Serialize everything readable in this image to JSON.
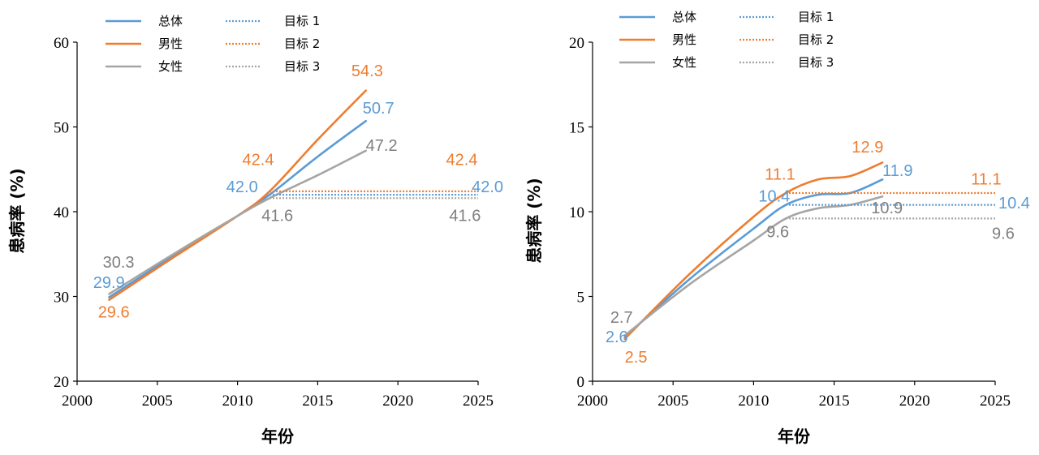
{
  "chart_data": [
    {
      "type": "line",
      "xlabel": "年份",
      "ylabel": "患病率 (%)",
      "xlim": [
        2000,
        2025
      ],
      "ylim": [
        20,
        60
      ],
      "xticks": [
        "2000",
        "2005",
        "2010",
        "2015",
        "2020",
        "2025"
      ],
      "yticks": [
        "20",
        "30",
        "40",
        "50",
        "60"
      ],
      "legend_placement": "top",
      "series": [
        {
          "name": "总体",
          "color": "#5b9bd5",
          "style": "solid",
          "points": [
            [
              2002,
              29.9
            ],
            [
              2006,
              34.8
            ],
            [
              2010,
              39.5
            ],
            [
              2012,
              42.0
            ],
            [
              2015,
              46.5
            ],
            [
              2018,
              50.7
            ]
          ]
        },
        {
          "name": "男性",
          "color": "#ed7d31",
          "style": "solid",
          "points": [
            [
              2002,
              29.6
            ],
            [
              2006,
              34.6
            ],
            [
              2010,
              39.5
            ],
            [
              2012,
              42.4
            ],
            [
              2015,
              48.5
            ],
            [
              2018,
              54.3
            ]
          ]
        },
        {
          "name": "女性",
          "color": "#a5a5a5",
          "style": "solid",
          "points": [
            [
              2002,
              30.3
            ],
            [
              2006,
              35.0
            ],
            [
              2010,
              39.5
            ],
            [
              2012,
              41.6
            ],
            [
              2015,
              44.3
            ],
            [
              2018,
              47.2
            ]
          ]
        },
        {
          "name": "目标 1",
          "color": "#5b9bd5",
          "style": "dotted",
          "points": [
            [
              2012,
              42.0
            ],
            [
              2025,
              42.0
            ]
          ]
        },
        {
          "name": "目标 2",
          "color": "#ed7d31",
          "style": "dotted",
          "points": [
            [
              2012,
              42.4
            ],
            [
              2025,
              42.4
            ]
          ]
        },
        {
          "name": "目标 3",
          "color": "#a5a5a5",
          "style": "dotted",
          "points": [
            [
              2012,
              41.6
            ],
            [
              2025,
              41.6
            ]
          ]
        }
      ],
      "annotations": [
        {
          "text": "30.3",
          "x": 2001.6,
          "y": 33.4,
          "color": "#7f7f7f",
          "anchor": "start"
        },
        {
          "text": "29.9",
          "x": 2001.0,
          "y": 31.0,
          "color": "#5b9bd5",
          "anchor": "start"
        },
        {
          "text": "29.6",
          "x": 2001.3,
          "y": 27.5,
          "color": "#ed7d31",
          "anchor": "start"
        },
        {
          "text": "42.4",
          "x": 2010.3,
          "y": 45.5,
          "color": "#ed7d31",
          "anchor": "start"
        },
        {
          "text": "42.0",
          "x": 2009.3,
          "y": 42.3,
          "color": "#5b9bd5",
          "anchor": "start"
        },
        {
          "text": "41.6",
          "x": 2011.5,
          "y": 38.9,
          "color": "#7f7f7f",
          "anchor": "start"
        },
        {
          "text": "54.3",
          "x": 2017.1,
          "y": 56.0,
          "color": "#ed7d31",
          "anchor": "start"
        },
        {
          "text": "50.7",
          "x": 2017.8,
          "y": 51.6,
          "color": "#5b9bd5",
          "anchor": "start"
        },
        {
          "text": "47.2",
          "x": 2018.0,
          "y": 47.2,
          "color": "#7f7f7f",
          "anchor": "start"
        },
        {
          "text": "42.4",
          "x": 2023.0,
          "y": 45.5,
          "color": "#ed7d31",
          "anchor": "start"
        },
        {
          "text": "42.0",
          "x": 2024.6,
          "y": 42.3,
          "color": "#5b9bd5",
          "anchor": "start"
        },
        {
          "text": "41.6",
          "x": 2023.2,
          "y": 38.9,
          "color": "#7f7f7f",
          "anchor": "start"
        }
      ]
    },
    {
      "type": "line",
      "xlabel": "年份",
      "ylabel": "患病率 (%)",
      "xlim": [
        2000,
        2025
      ],
      "ylim": [
        0,
        20
      ],
      "xticks": [
        "2000",
        "2005",
        "2010",
        "2015",
        "2020",
        "2025"
      ],
      "yticks": [
        "0",
        "5",
        "10",
        "15",
        "20"
      ],
      "legend_placement": "top",
      "series": [
        {
          "name": "总体",
          "color": "#5b9bd5",
          "style": "solid",
          "points": [
            [
              2002,
              2.6
            ],
            [
              2006,
              6.0
            ],
            [
              2010,
              9.0
            ],
            [
              2012,
              10.4
            ],
            [
              2014,
              11.0
            ],
            [
              2016,
              11.1
            ],
            [
              2018,
              11.9
            ]
          ]
        },
        {
          "name": "男性",
          "color": "#ed7d31",
          "style": "solid",
          "points": [
            [
              2002,
              2.5
            ],
            [
              2006,
              6.3
            ],
            [
              2010,
              9.7
            ],
            [
              2012,
              11.1
            ],
            [
              2014,
              11.9
            ],
            [
              2016,
              12.1
            ],
            [
              2018,
              12.9
            ]
          ]
        },
        {
          "name": "女性",
          "color": "#a5a5a5",
          "style": "solid",
          "points": [
            [
              2002,
              2.7
            ],
            [
              2006,
              5.7
            ],
            [
              2010,
              8.3
            ],
            [
              2012,
              9.6
            ],
            [
              2014,
              10.2
            ],
            [
              2016,
              10.4
            ],
            [
              2018,
              10.9
            ]
          ]
        },
        {
          "name": "目标 1",
          "color": "#5b9bd5",
          "style": "dotted",
          "points": [
            [
              2012,
              10.4
            ],
            [
              2025,
              10.4
            ]
          ]
        },
        {
          "name": "目标 2",
          "color": "#ed7d31",
          "style": "dotted",
          "points": [
            [
              2012,
              11.1
            ],
            [
              2025,
              11.1
            ]
          ]
        },
        {
          "name": "目标 3",
          "color": "#a5a5a5",
          "style": "dotted",
          "points": [
            [
              2012,
              9.6
            ],
            [
              2025,
              9.6
            ]
          ]
        }
      ],
      "annotations": [
        {
          "text": "2.7",
          "x": 2001.1,
          "y": 3.45,
          "color": "#7f7f7f",
          "anchor": "start"
        },
        {
          "text": "2.6",
          "x": 2000.8,
          "y": 2.3,
          "color": "#5b9bd5",
          "anchor": "start"
        },
        {
          "text": "2.5",
          "x": 2002.0,
          "y": 1.1,
          "color": "#ed7d31",
          "anchor": "start"
        },
        {
          "text": "11.1",
          "x": 2010.7,
          "y": 11.9,
          "color": "#ed7d31",
          "anchor": "start"
        },
        {
          "text": "10.4",
          "x": 2010.3,
          "y": 10.6,
          "color": "#5b9bd5",
          "anchor": "start"
        },
        {
          "text": "9.6",
          "x": 2010.8,
          "y": 8.5,
          "color": "#7f7f7f",
          "anchor": "start"
        },
        {
          "text": "12.9",
          "x": 2016.1,
          "y": 13.5,
          "color": "#ed7d31",
          "anchor": "start"
        },
        {
          "text": "11.9",
          "x": 2018.0,
          "y": 12.1,
          "color": "#5b9bd5",
          "anchor": "start"
        },
        {
          "text": "10.9",
          "x": 2017.3,
          "y": 9.9,
          "color": "#7f7f7f",
          "anchor": "start"
        },
        {
          "text": "11.1",
          "x": 2023.5,
          "y": 11.6,
          "color": "#ed7d31",
          "anchor": "start"
        },
        {
          "text": "10.4",
          "x": 2025.2,
          "y": 10.2,
          "color": "#5b9bd5",
          "anchor": "start"
        },
        {
          "text": "9.6",
          "x": 2024.8,
          "y": 8.4,
          "color": "#7f7f7f",
          "anchor": "start"
        }
      ]
    }
  ]
}
